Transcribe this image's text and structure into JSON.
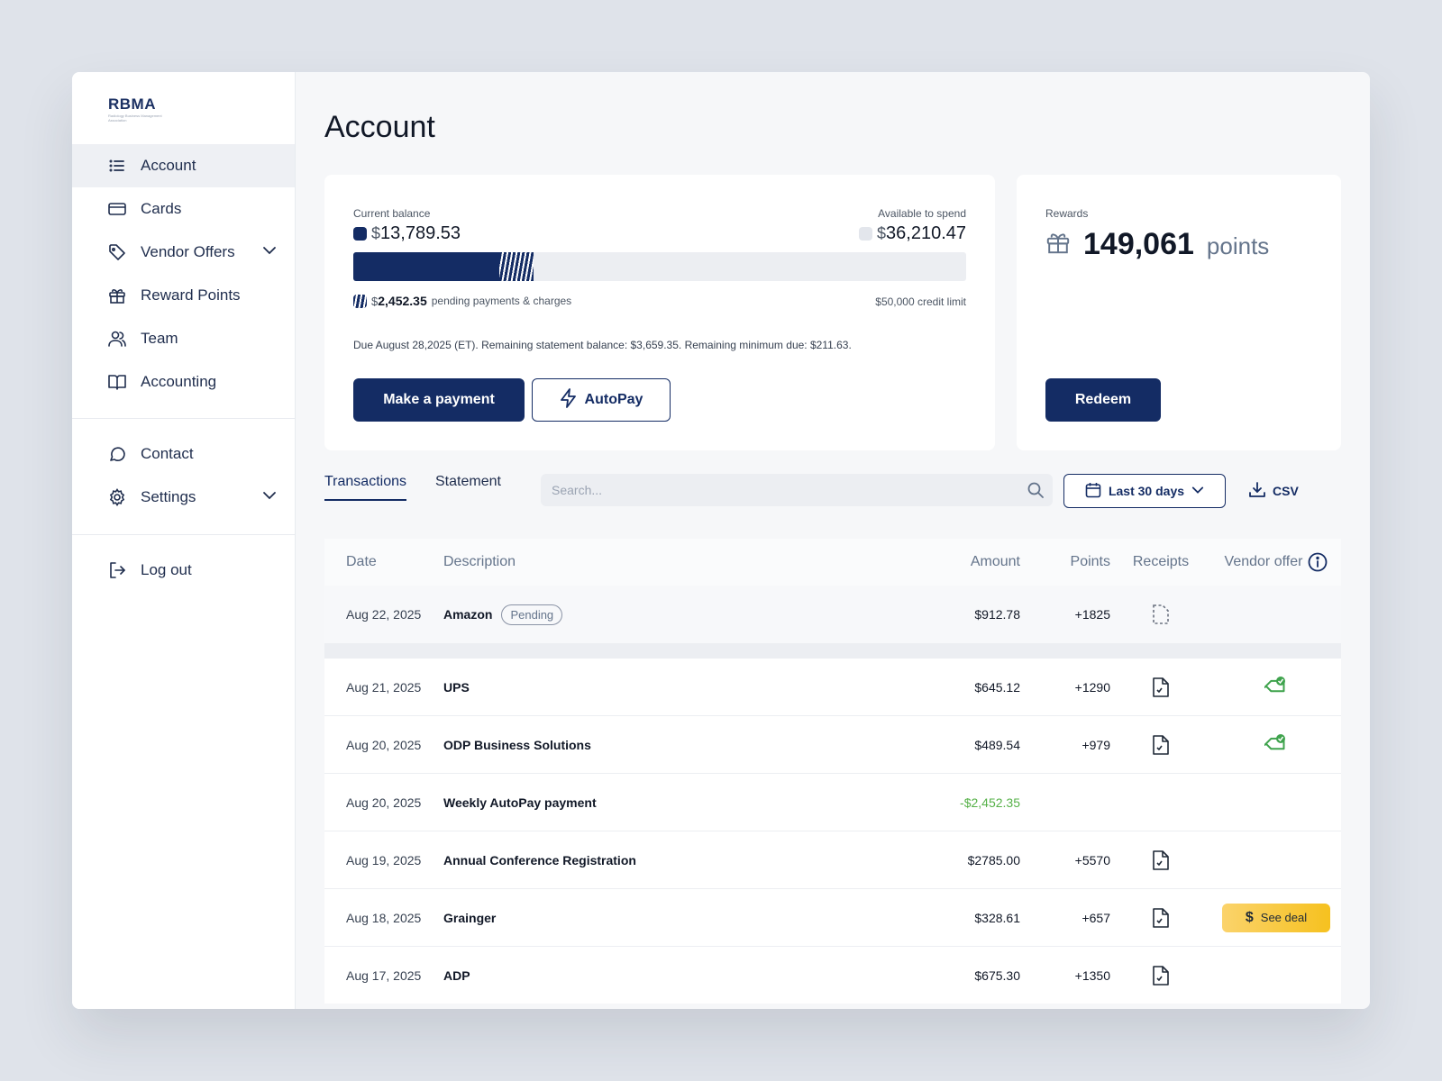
{
  "logo": {
    "text_main": "RBMA",
    "subtitle": "Radiology Business Management Association"
  },
  "sidebar": {
    "items": [
      {
        "label": "Account",
        "icon": "list-icon"
      },
      {
        "label": "Cards",
        "icon": "credit-card-icon"
      },
      {
        "label": "Vendor Offers",
        "icon": "tag-icon"
      },
      {
        "label": "Reward Points",
        "icon": "gift-icon"
      },
      {
        "label": "Team",
        "icon": "users-icon"
      },
      {
        "label": "Accounting",
        "icon": "book-icon"
      }
    ],
    "secondary": [
      {
        "label": "Contact",
        "icon": "chat-icon"
      },
      {
        "label": "Settings",
        "icon": "gear-icon"
      }
    ],
    "logout": {
      "label": "Log out",
      "icon": "logout-icon"
    }
  },
  "page": {
    "title": "Account"
  },
  "balance": {
    "current_label": "Current balance",
    "current_currency": "$",
    "current_value": "13,789.53",
    "available_label": "Available to spend",
    "available_currency": "$",
    "available_value": "36,210.47",
    "used_fraction": 0.2386,
    "pending_fraction": 0.0555,
    "pending_currency": "$",
    "pending_value": "2,452.35",
    "pending_text": "pending payments & charges",
    "credit_limit": "$50,000 credit limit",
    "due_text": "Due August 28,2025 (ET). Remaining statement balance: $3,659.35. Remaining minimum due: $211.63.",
    "make_payment": "Make a payment",
    "autopay": "AutoPay"
  },
  "rewards": {
    "label": "Rewards",
    "value": "149,061",
    "unit": "points",
    "redeem": "Redeem"
  },
  "toolbar": {
    "tabs": [
      "Transactions",
      "Statement"
    ],
    "search_placeholder": "Search...",
    "date_range": "Last 30 days",
    "csv": "CSV"
  },
  "table": {
    "headers": {
      "date": "Date",
      "description": "Description",
      "amount": "Amount",
      "points": "Points",
      "receipts": "Receipts",
      "vendor_offer": "Vendor offer"
    },
    "pending_row": {
      "date": "Aug 22, 2025",
      "description": "Amazon",
      "badge": "Pending",
      "amount": "$912.78",
      "points": "+1825"
    },
    "rows": [
      {
        "date": "Aug 21, 2025",
        "description": "UPS",
        "amount": "$645.12",
        "points": "+1290"
      },
      {
        "date": "Aug 20, 2025",
        "description": "ODP Business Solutions",
        "amount": "$489.54",
        "points": "+979"
      },
      {
        "date": "Aug 20, 2025",
        "description": "Weekly AutoPay payment",
        "amount": "-$2,452.35",
        "points": ""
      },
      {
        "date": "Aug 19, 2025",
        "description": "Annual Conference Registration",
        "amount": "$2785.00",
        "points": "+5570"
      },
      {
        "date": "Aug 18, 2025",
        "description": "Grainger",
        "amount": "$328.61",
        "points": "+657",
        "deal": "See deal"
      },
      {
        "date": "Aug 17, 2025",
        "description": "ADP",
        "amount": "$675.30",
        "points": "+1350"
      }
    ]
  },
  "colors": {
    "brand": "#142c64",
    "positive": "#56b148",
    "deal": "#f6c11f",
    "offer_green": "#3fa34d"
  }
}
